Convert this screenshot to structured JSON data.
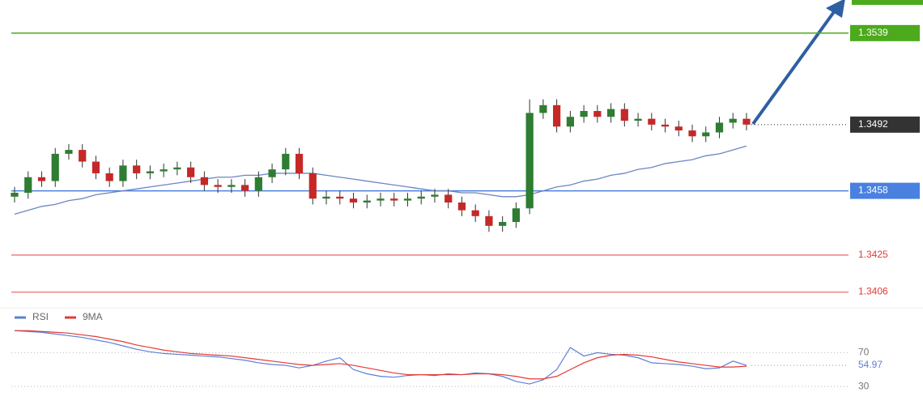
{
  "chart_data": [
    {
      "type": "candlestick",
      "open": [
        1.3455,
        1.3457,
        1.3465,
        1.3463,
        1.3477,
        1.3479,
        1.3473,
        1.3467,
        1.3463,
        1.3471,
        1.3467,
        1.3468,
        1.3469,
        1.347,
        1.3465,
        1.3461,
        1.346,
        1.3461,
        1.3458,
        1.3465,
        1.3469,
        1.3477,
        1.3467,
        1.3454,
        1.3455,
        1.3454,
        1.3452,
        1.3453,
        1.3454,
        1.3453,
        1.3454,
        1.3455,
        1.3456,
        1.3452,
        1.3448,
        1.3445,
        1.344,
        1.3442,
        1.3449,
        1.3498,
        1.3502,
        1.3491,
        1.3496,
        1.3499,
        1.3496,
        1.35,
        1.3494,
        1.3495,
        1.3492,
        1.3491,
        1.3489,
        1.3486,
        1.3488,
        1.3493,
        1.3495
      ],
      "high": [
        1.346,
        1.3468,
        1.3468,
        1.348,
        1.3482,
        1.3482,
        1.3476,
        1.347,
        1.3474,
        1.3474,
        1.3471,
        1.3472,
        1.3473,
        1.3473,
        1.3468,
        1.3464,
        1.3464,
        1.3464,
        1.3468,
        1.3472,
        1.348,
        1.348,
        1.347,
        1.3458,
        1.3458,
        1.3457,
        1.3456,
        1.3457,
        1.3457,
        1.3457,
        1.3458,
        1.3459,
        1.3459,
        1.3455,
        1.3451,
        1.3448,
        1.3445,
        1.3452,
        1.3505,
        1.3505,
        1.3505,
        1.3499,
        1.3502,
        1.3502,
        1.3503,
        1.3503,
        1.3498,
        1.3498,
        1.3495,
        1.3494,
        1.3492,
        1.3491,
        1.3496,
        1.3498,
        1.3498
      ],
      "low": [
        1.3452,
        1.3454,
        1.346,
        1.346,
        1.3474,
        1.347,
        1.3464,
        1.346,
        1.346,
        1.3464,
        1.3464,
        1.3465,
        1.3466,
        1.3462,
        1.3458,
        1.3457,
        1.3457,
        1.3455,
        1.3455,
        1.3462,
        1.3466,
        1.3464,
        1.3451,
        1.3451,
        1.3451,
        1.3449,
        1.3449,
        1.345,
        1.345,
        1.345,
        1.3451,
        1.3452,
        1.3449,
        1.3445,
        1.3442,
        1.3437,
        1.3437,
        1.3439,
        1.3446,
        1.3495,
        1.3488,
        1.3488,
        1.3493,
        1.3493,
        1.3493,
        1.3491,
        1.3491,
        1.3489,
        1.3488,
        1.3486,
        1.3483,
        1.3483,
        1.3485,
        1.349,
        1.3489
      ],
      "close": [
        1.3457,
        1.3465,
        1.3463,
        1.3477,
        1.3479,
        1.3473,
        1.3467,
        1.3463,
        1.3471,
        1.3467,
        1.3468,
        1.3469,
        1.347,
        1.3465,
        1.3461,
        1.346,
        1.3461,
        1.3458,
        1.3465,
        1.3469,
        1.3477,
        1.3467,
        1.3454,
        1.3455,
        1.3454,
        1.3452,
        1.3453,
        1.3454,
        1.3453,
        1.3454,
        1.3455,
        1.3456,
        1.3452,
        1.3448,
        1.3445,
        1.344,
        1.3442,
        1.3449,
        1.3498,
        1.3502,
        1.3491,
        1.3496,
        1.3499,
        1.3496,
        1.35,
        1.3494,
        1.3495,
        1.3492,
        1.3491,
        1.3489,
        1.3486,
        1.3488,
        1.3493,
        1.3495,
        1.3492
      ],
      "up_color": "#2e7d32",
      "down_color": "#c62828",
      "ylim": [
        1.34,
        1.3556
      ],
      "ma": {
        "color": "#6b86c4",
        "values": [
          1.3446,
          1.3448,
          1.345,
          1.3451,
          1.3453,
          1.3454,
          1.3456,
          1.3457,
          1.3458,
          1.3459,
          1.346,
          1.3461,
          1.3462,
          1.3463,
          1.3464,
          1.3465,
          1.3465,
          1.3466,
          1.3466,
          1.3467,
          1.3467,
          1.3467,
          1.3467,
          1.3466,
          1.3465,
          1.3464,
          1.3463,
          1.3462,
          1.3461,
          1.346,
          1.3459,
          1.3458,
          1.3458,
          1.3457,
          1.3457,
          1.3456,
          1.3455,
          1.3455,
          1.3456,
          1.3458,
          1.346,
          1.3461,
          1.3463,
          1.3464,
          1.3466,
          1.3467,
          1.3469,
          1.347,
          1.3472,
          1.3473,
          1.3474,
          1.3476,
          1.3477,
          1.3479,
          1.3481
        ]
      },
      "levels": [
        {
          "value": 1.3539,
          "color": "#4caa1c",
          "style": "solid",
          "filled": true
        },
        {
          "value": 1.3492,
          "color": "#333333",
          "style": "dotted",
          "filled": true
        },
        {
          "value": 1.3458,
          "color": "#4a80e0",
          "style": "solid",
          "filled": true
        },
        {
          "value": 1.3425,
          "color": "#f08080",
          "style": "solid",
          "filled": false
        },
        {
          "value": 1.3406,
          "color": "#f08080",
          "style": "solid",
          "filled": false
        }
      ]
    },
    {
      "type": "line",
      "series": [
        {
          "name": "RSI",
          "color": "#5b7fd6",
          "values": [
            96,
            95,
            94,
            92,
            90,
            88,
            85,
            82,
            78,
            74,
            71,
            69,
            68,
            67,
            66,
            65,
            63,
            61,
            58,
            56,
            55,
            52,
            55,
            60,
            64,
            50,
            45,
            42,
            41,
            43,
            44,
            43,
            45,
            44,
            46,
            45,
            42,
            36,
            33,
            38,
            50,
            76,
            66,
            70,
            68,
            67,
            64,
            58,
            57,
            56,
            54,
            51,
            52,
            60,
            54.97
          ]
        },
        {
          "name": "9MA",
          "color": "#e53935",
          "values": [
            96,
            96,
            95,
            94,
            93,
            91,
            89,
            86,
            83,
            79,
            76,
            73,
            71,
            69,
            68,
            67,
            66,
            64,
            62,
            60,
            58,
            56,
            55,
            56,
            57,
            55,
            52,
            49,
            46,
            44,
            44,
            44,
            44,
            44,
            45,
            45,
            44,
            42,
            39,
            39,
            42,
            50,
            58,
            64,
            67,
            68,
            67,
            65,
            62,
            59,
            57,
            55,
            53,
            53,
            54
          ]
        }
      ],
      "ylim": [
        12,
        100
      ],
      "yticks": [
        30,
        70
      ],
      "legend": "top-left"
    }
  ]
}
